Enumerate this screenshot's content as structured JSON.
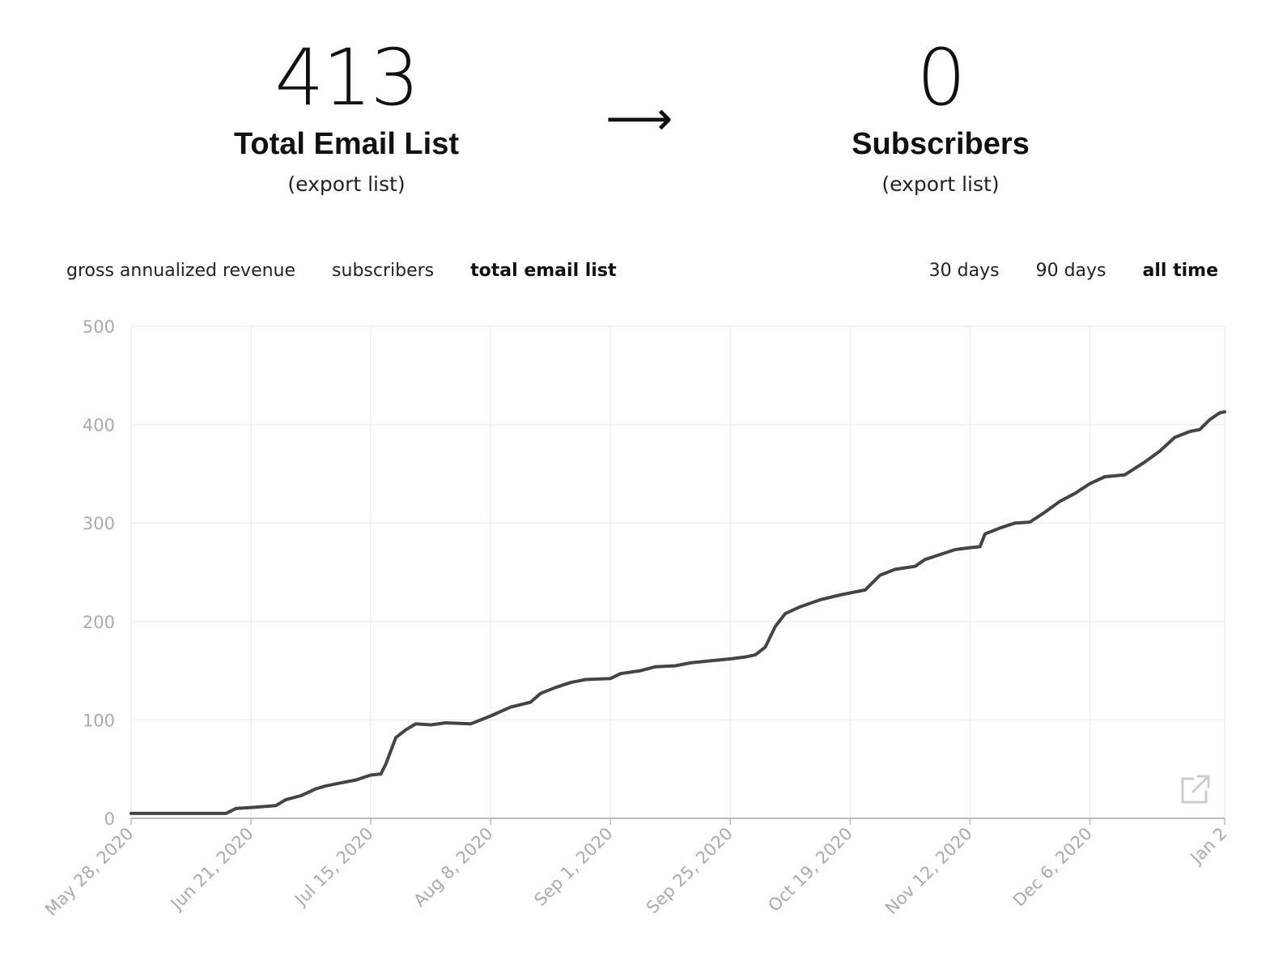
{
  "stats": {
    "total": {
      "value": "413",
      "label": "Total Email List",
      "link": "(export list)"
    },
    "arrow": "⟶",
    "subscribers": {
      "value": "0",
      "label": "Subscribers",
      "link": "(export list)"
    }
  },
  "metric_tabs": [
    {
      "label": "gross annualized revenue",
      "active": false
    },
    {
      "label": "subscribers",
      "active": false
    },
    {
      "label": "total email list",
      "active": true
    }
  ],
  "range_tabs": [
    {
      "label": "30 days",
      "active": false
    },
    {
      "label": "90 days",
      "active": false
    },
    {
      "label": "all time",
      "active": true
    }
  ],
  "colors": {
    "line": "#444444",
    "grid": "#eeeeee",
    "axis": "#bbbbbb",
    "tick_text": "#aaaaaa",
    "icon": "#cccccc"
  },
  "icons": {
    "export": "external-link-icon"
  },
  "chart_data": {
    "type": "line",
    "title": "",
    "xlabel": "",
    "ylabel": "",
    "ylim": [
      0,
      500
    ],
    "yticks": [
      0,
      100,
      200,
      300,
      400,
      500
    ],
    "xlim": [
      "2020-05-28",
      "2021-01-02"
    ],
    "xticks": [
      {
        "date": "2020-05-28",
        "label": "May 28, 2020"
      },
      {
        "date": "2020-06-21",
        "label": "Jun 21, 2020"
      },
      {
        "date": "2020-07-15",
        "label": "Jul 15, 2020"
      },
      {
        "date": "2020-08-08",
        "label": "Aug 8, 2020"
      },
      {
        "date": "2020-09-01",
        "label": "Sep 1, 2020"
      },
      {
        "date": "2020-09-25",
        "label": "Sep 25, 2020"
      },
      {
        "date": "2020-10-19",
        "label": "Oct 19, 2020"
      },
      {
        "date": "2020-11-12",
        "label": "Nov 12, 2020"
      },
      {
        "date": "2020-12-06",
        "label": "Dec 6, 2020"
      },
      {
        "date": "2021-01-02",
        "label": "Jan 2"
      }
    ],
    "grid": true,
    "series": [
      {
        "points": [
          [
            "2020-05-28",
            5
          ],
          [
            "2020-06-16",
            5
          ],
          [
            "2020-06-18",
            10
          ],
          [
            "2020-06-21",
            11
          ],
          [
            "2020-06-26",
            13
          ],
          [
            "2020-06-28",
            19
          ],
          [
            "2020-07-01",
            23
          ],
          [
            "2020-07-04",
            30
          ],
          [
            "2020-07-06",
            33
          ],
          [
            "2020-07-09",
            36
          ],
          [
            "2020-07-12",
            39
          ],
          [
            "2020-07-15",
            44
          ],
          [
            "2020-07-17",
            45
          ],
          [
            "2020-07-18",
            55
          ],
          [
            "2020-07-20",
            82
          ],
          [
            "2020-07-22",
            90
          ],
          [
            "2020-07-24",
            96
          ],
          [
            "2020-07-27",
            95
          ],
          [
            "2020-07-30",
            97
          ],
          [
            "2020-08-04",
            96
          ],
          [
            "2020-08-08",
            104
          ],
          [
            "2020-08-12",
            113
          ],
          [
            "2020-08-16",
            118
          ],
          [
            "2020-08-18",
            127
          ],
          [
            "2020-08-21",
            133
          ],
          [
            "2020-08-24",
            138
          ],
          [
            "2020-08-27",
            141
          ],
          [
            "2020-09-01",
            142
          ],
          [
            "2020-09-03",
            147
          ],
          [
            "2020-09-07",
            150
          ],
          [
            "2020-09-10",
            154
          ],
          [
            "2020-09-14",
            155
          ],
          [
            "2020-09-17",
            158
          ],
          [
            "2020-09-21",
            160
          ],
          [
            "2020-09-25",
            162
          ],
          [
            "2020-09-28",
            164
          ],
          [
            "2020-09-30",
            166
          ],
          [
            "2020-10-02",
            174
          ],
          [
            "2020-10-04",
            195
          ],
          [
            "2020-10-06",
            208
          ],
          [
            "2020-10-09",
            215
          ],
          [
            "2020-10-13",
            222
          ],
          [
            "2020-10-17",
            227
          ],
          [
            "2020-10-19",
            229
          ],
          [
            "2020-10-22",
            232
          ],
          [
            "2020-10-25",
            247
          ],
          [
            "2020-10-28",
            253
          ],
          [
            "2020-11-01",
            256
          ],
          [
            "2020-11-03",
            263
          ],
          [
            "2020-11-06",
            268
          ],
          [
            "2020-11-09",
            273
          ],
          [
            "2020-11-12",
            275
          ],
          [
            "2020-11-14",
            276
          ],
          [
            "2020-11-15",
            289
          ],
          [
            "2020-11-18",
            295
          ],
          [
            "2020-11-21",
            300
          ],
          [
            "2020-11-24",
            301
          ],
          [
            "2020-11-27",
            311
          ],
          [
            "2020-11-30",
            322
          ],
          [
            "2020-12-03",
            330
          ],
          [
            "2020-12-06",
            340
          ],
          [
            "2020-12-09",
            347
          ],
          [
            "2020-12-13",
            349
          ],
          [
            "2020-12-17",
            362
          ],
          [
            "2020-12-20",
            373
          ],
          [
            "2020-12-23",
            387
          ],
          [
            "2020-12-26",
            393
          ],
          [
            "2020-12-28",
            395
          ],
          [
            "2020-12-30",
            405
          ],
          [
            "2021-01-01",
            412
          ],
          [
            "2021-01-02",
            413
          ]
        ]
      }
    ]
  }
}
